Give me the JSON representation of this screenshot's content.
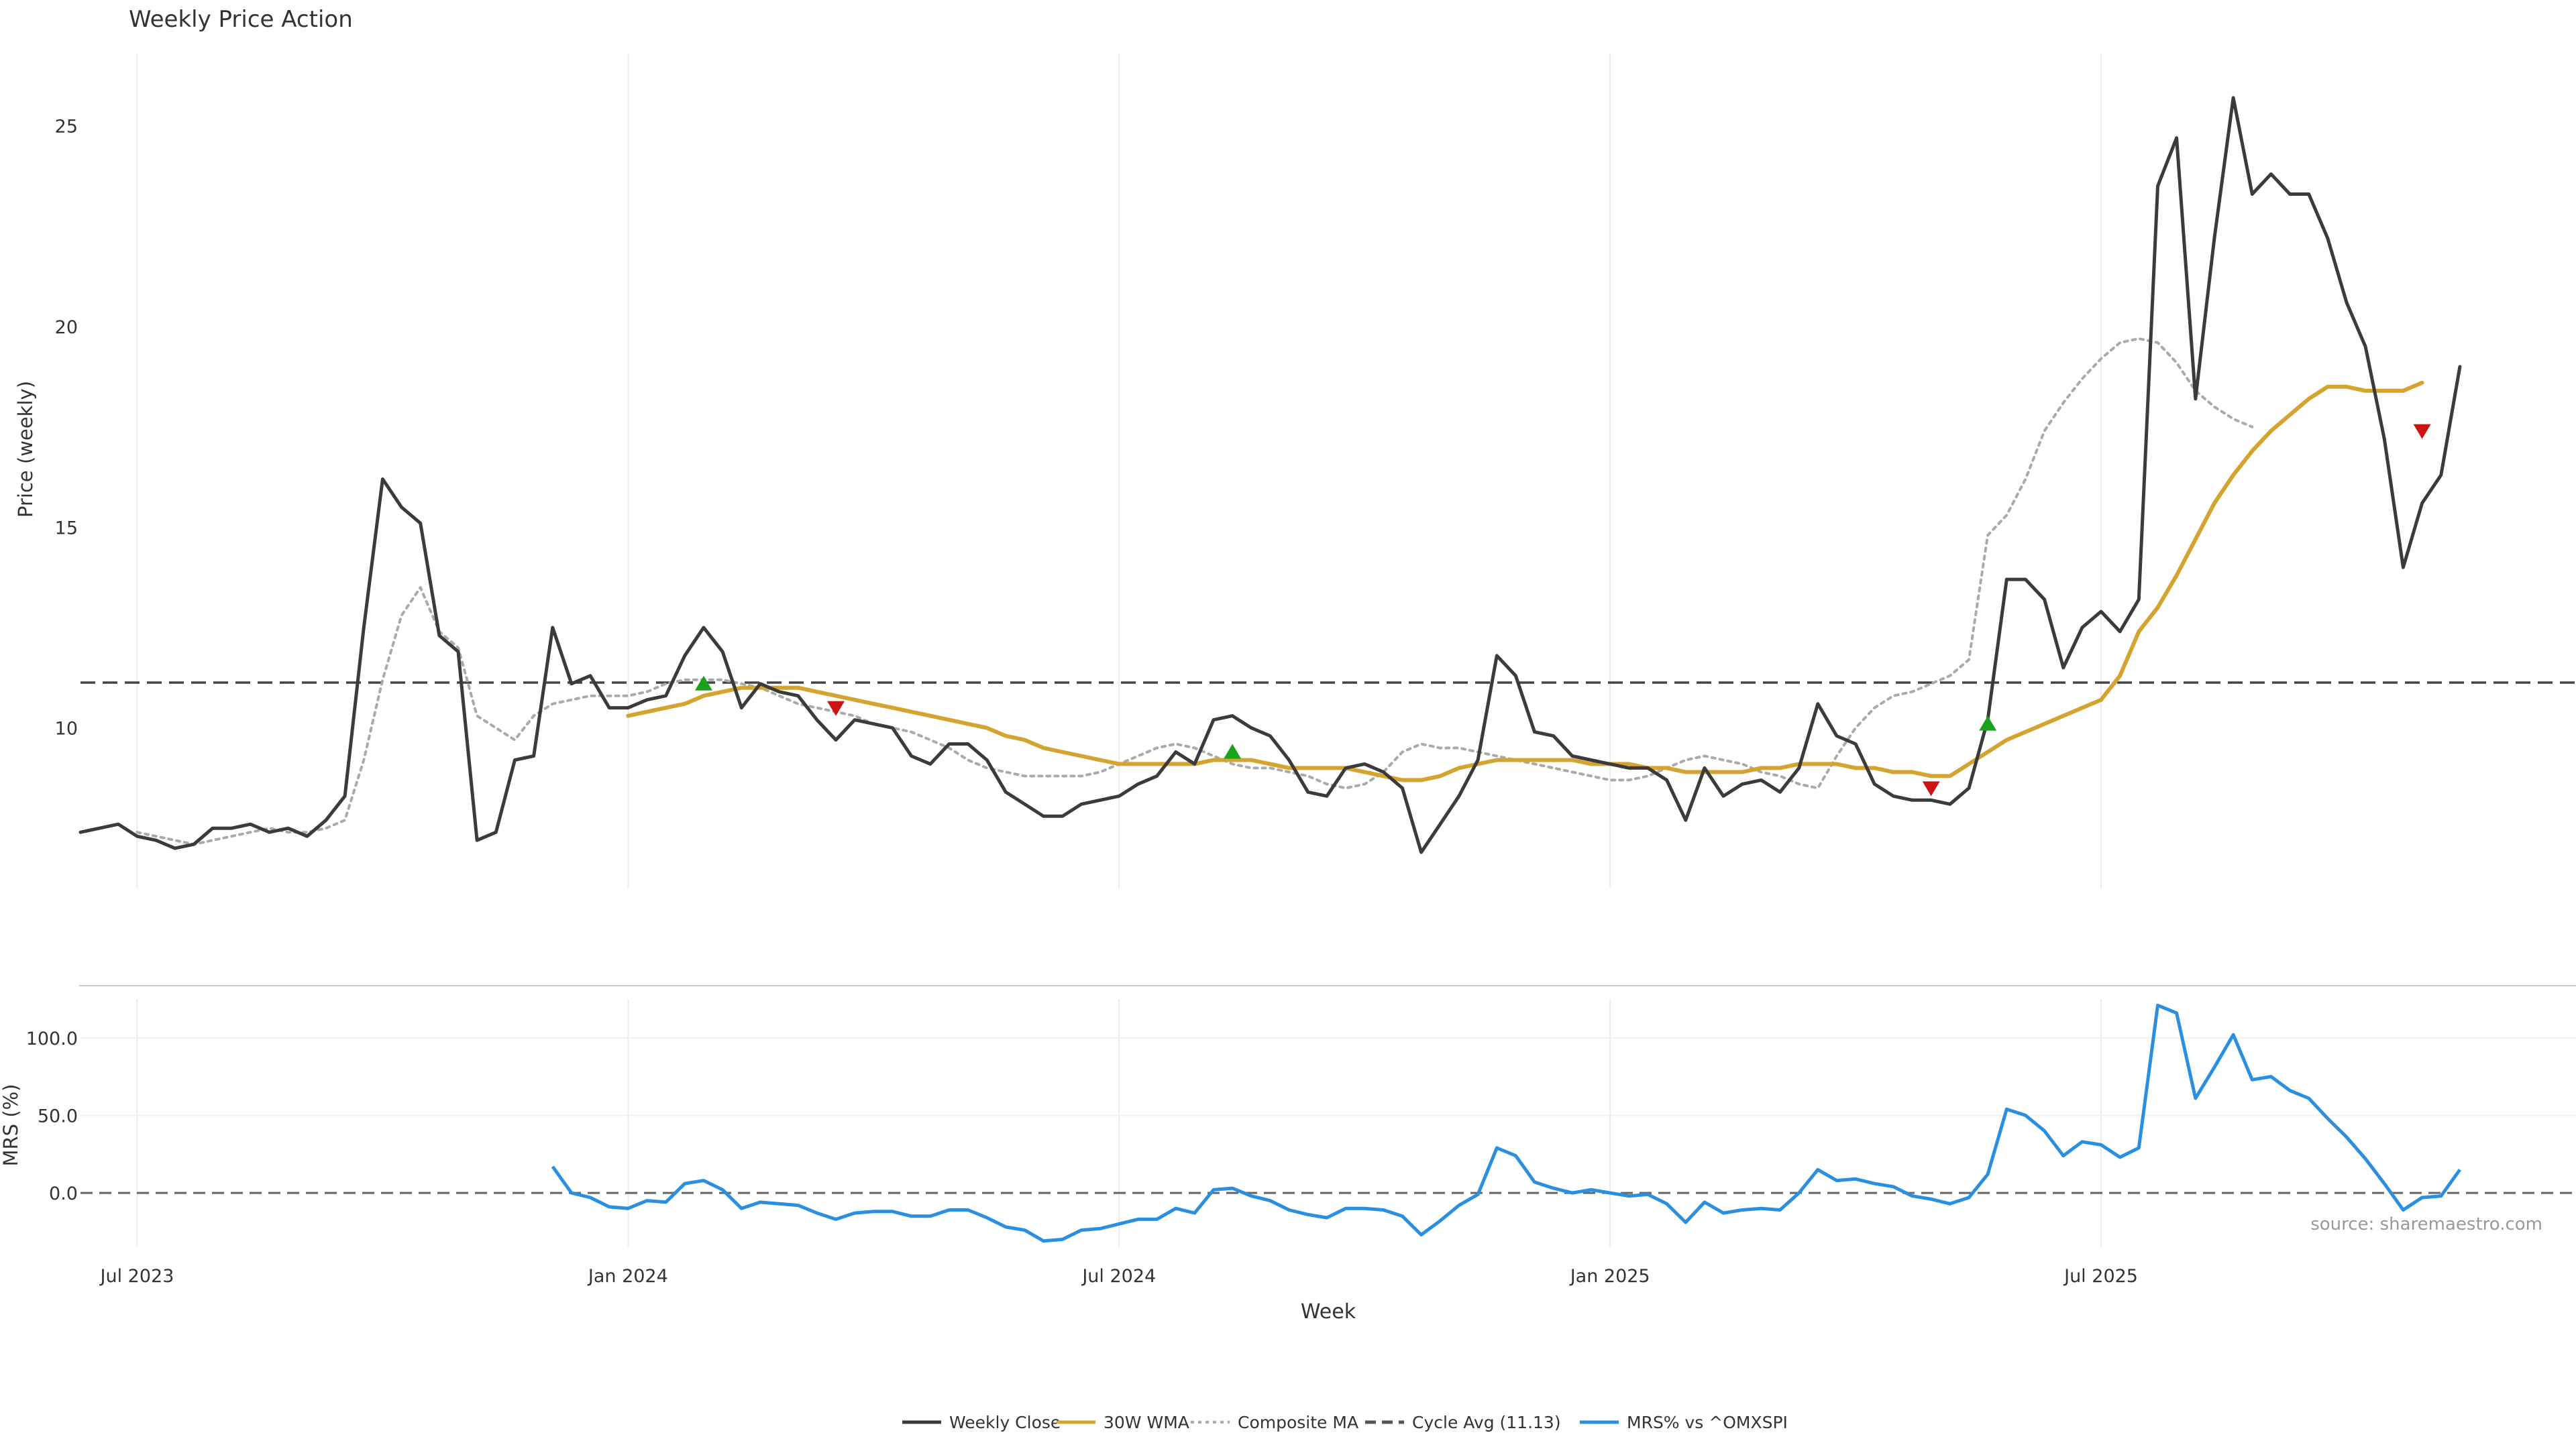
{
  "chart_data": {
    "type": "line",
    "title": "Weekly Price Action",
    "source_note": "source: sharemaestro.com",
    "xlabel": "Week",
    "x_ticks": [
      "Jul 2023",
      "Jan 2024",
      "Jul 2024",
      "Jan 2025",
      "Jul 2025"
    ],
    "x_tick_week_index": [
      3,
      29,
      55,
      81,
      107
    ],
    "weeks_count": 127,
    "price_panel": {
      "ylabel": "Price (weekly)",
      "ylim": [
        6.0,
        26.8
      ],
      "yticks": [
        10,
        15,
        20,
        25
      ],
      "cycle_avg": 11.13,
      "series": [
        {
          "name": "Weekly Close",
          "color": "#3b3b3b",
          "start_index": 0,
          "values": [
            7.4,
            7.5,
            7.6,
            7.3,
            7.2,
            7.0,
            7.1,
            7.5,
            7.5,
            7.6,
            7.4,
            7.5,
            7.3,
            7.7,
            8.3,
            12.5,
            16.2,
            15.5,
            15.1,
            12.3,
            11.9,
            7.2,
            7.4,
            9.2,
            9.3,
            12.5,
            11.1,
            11.3,
            10.5,
            10.5,
            10.7,
            10.8,
            11.8,
            12.5,
            11.9,
            10.5,
            11.1,
            10.9,
            10.8,
            10.2,
            9.7,
            10.2,
            10.1,
            10.0,
            9.3,
            9.1,
            9.6,
            9.6,
            9.2,
            8.4,
            8.1,
            7.8,
            7.8,
            8.1,
            8.2,
            8.3,
            8.6,
            8.8,
            9.4,
            9.1,
            10.2,
            10.3,
            10.0,
            9.8,
            9.2,
            8.4,
            8.3,
            9.0,
            9.1,
            8.9,
            8.5,
            6.9,
            7.6,
            8.3,
            9.2,
            11.8,
            11.3,
            9.9,
            9.8,
            9.3,
            9.2,
            9.1,
            9.0,
            9.0,
            8.7,
            7.7,
            9.0,
            8.3,
            8.6,
            8.7,
            8.4,
            9.0,
            10.6,
            9.8,
            9.6,
            8.6,
            8.3,
            8.2,
            8.2,
            8.1,
            8.5,
            10.2,
            13.7,
            13.7,
            13.2,
            11.5,
            12.5,
            12.9,
            12.4,
            13.2,
            23.5,
            24.7,
            18.2,
            22.2,
            25.7,
            23.3,
            23.8,
            23.3,
            23.3,
            22.2,
            20.6,
            19.5,
            17.2,
            14.0,
            15.6,
            16.3,
            19.0
          ]
        },
        {
          "name": "30W WMA",
          "color": "#d4a430",
          "start_index": 29,
          "values": [
            10.3,
            10.4,
            10.5,
            10.6,
            10.8,
            10.9,
            11.0,
            11.0,
            11.0,
            11.0,
            10.9,
            10.8,
            10.7,
            10.6,
            10.5,
            10.4,
            10.3,
            10.2,
            10.1,
            10.0,
            9.8,
            9.7,
            9.5,
            9.4,
            9.3,
            9.2,
            9.1,
            9.1,
            9.1,
            9.1,
            9.1,
            9.2,
            9.2,
            9.2,
            9.1,
            9.0,
            9.0,
            9.0,
            9.0,
            8.9,
            8.8,
            8.7,
            8.7,
            8.8,
            9.0,
            9.1,
            9.2,
            9.2,
            9.2,
            9.2,
            9.2,
            9.1,
            9.1,
            9.1,
            9.0,
            9.0,
            8.9,
            8.9,
            8.9,
            8.9,
            9.0,
            9.0,
            9.1,
            9.1,
            9.1,
            9.0,
            9.0,
            8.9,
            8.9,
            8.8,
            8.8,
            9.1,
            9.4,
            9.7,
            9.9,
            10.1,
            10.3,
            10.5,
            10.7,
            11.3,
            12.4,
            13.0,
            13.8,
            14.7,
            15.6,
            16.3,
            16.9,
            17.4,
            17.8,
            18.2,
            18.5,
            18.5,
            18.4,
            18.4,
            18.4,
            18.6
          ]
        },
        {
          "name": "Composite MA",
          "color": "#aaaaaa",
          "start_index": 3,
          "values": [
            7.4,
            7.3,
            7.2,
            7.1,
            7.2,
            7.3,
            7.4,
            7.5,
            7.4,
            7.4,
            7.5,
            7.7,
            9.2,
            11.2,
            12.8,
            13.5,
            12.4,
            12.0,
            10.3,
            10.0,
            9.7,
            10.3,
            10.6,
            10.7,
            10.8,
            10.8,
            10.8,
            10.9,
            11.1,
            11.2,
            11.2,
            11.2,
            11.1,
            11.0,
            10.8,
            10.6,
            10.5,
            10.4,
            10.3,
            10.1,
            10.0,
            9.9,
            9.7,
            9.5,
            9.2,
            9.0,
            8.9,
            8.8,
            8.8,
            8.8,
            8.8,
            8.9,
            9.1,
            9.3,
            9.5,
            9.6,
            9.5,
            9.3,
            9.1,
            9.0,
            9.0,
            8.9,
            8.8,
            8.6,
            8.5,
            8.6,
            8.9,
            9.4,
            9.6,
            9.5,
            9.5,
            9.4,
            9.3,
            9.2,
            9.1,
            9.0,
            8.9,
            8.8,
            8.7,
            8.7,
            8.8,
            9.0,
            9.2,
            9.3,
            9.2,
            9.1,
            8.9,
            8.8,
            8.6,
            8.5,
            9.3,
            10.0,
            10.5,
            10.8,
            10.9,
            11.1,
            11.3,
            11.7,
            14.8,
            15.3,
            16.2,
            17.4,
            18.1,
            18.7,
            19.2,
            19.6,
            19.7,
            19.6,
            19.1,
            18.4,
            18.0,
            17.7,
            17.5
          ]
        }
      ],
      "signals_up": [
        [
          33,
          11.1
        ],
        [
          61,
          9.4
        ],
        [
          101,
          10.1
        ]
      ],
      "signals_down": [
        [
          40,
          10.5
        ],
        [
          98,
          8.5
        ],
        [
          124,
          17.4
        ]
      ]
    },
    "mrs_panel": {
      "ylabel": "MRS (%)",
      "ylim": [
        -35,
        125
      ],
      "yticks": [
        0.0,
        50.0,
        100.0
      ],
      "ytick_labels": [
        "0.0",
        "50.0",
        "100.0"
      ],
      "series": [
        {
          "name": "MRS% vs ^OMXSPI",
          "color": "#2b8fe0",
          "start_index": 25,
          "values": [
            17,
            0,
            -3,
            -9,
            -10,
            -5,
            -6,
            6,
            8,
            2,
            -10,
            -6,
            -7,
            -8,
            -13,
            -17,
            -13,
            -12,
            -12,
            -15,
            -15,
            -11,
            -11,
            -16,
            -22,
            -24,
            -31,
            -30,
            -24,
            -23,
            -20,
            -17,
            -17,
            -10,
            -13,
            2,
            3,
            -2,
            -5,
            -11,
            -14,
            -16,
            -10,
            -10,
            -11,
            -15,
            -27,
            -18,
            -8,
            -1,
            29,
            24,
            7,
            3,
            0,
            2,
            0,
            -2,
            -1,
            -7,
            -19,
            -6,
            -13,
            -11,
            -10,
            -11,
            0,
            15,
            8,
            9,
            6,
            4,
            -2,
            -4,
            -7,
            -3,
            12,
            54,
            50,
            40,
            24,
            33,
            31,
            23,
            29,
            121,
            116,
            61,
            81,
            102,
            73,
            75,
            66,
            61,
            48,
            36,
            22,
            6,
            -11,
            -3,
            -2,
            15
          ]
        }
      ]
    },
    "legend": {
      "position": "bottom-center",
      "entries": [
        {
          "label": "Weekly Close",
          "color": "#3b3b3b",
          "style": "solid"
        },
        {
          "label": "30W WMA",
          "color": "#d4a430",
          "style": "solid"
        },
        {
          "label": "Composite MA",
          "color": "#aaaaaa",
          "style": "dotted"
        },
        {
          "label": "Cycle Avg (11.13)",
          "color": "#555555",
          "style": "dashed"
        },
        {
          "label": "MRS% vs ^OMXSPI",
          "color": "#2b8fe0",
          "style": "solid"
        }
      ]
    }
  }
}
